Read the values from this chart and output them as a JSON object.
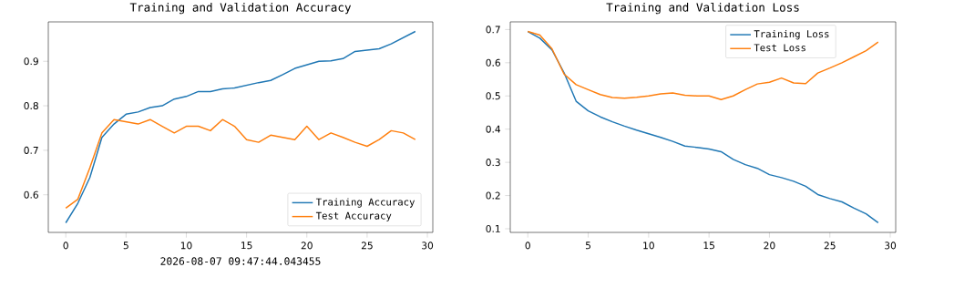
{
  "chart_data": [
    {
      "type": "line",
      "title": "Training and Validation Accuracy",
      "x": [
        0,
        1,
        2,
        3,
        4,
        5,
        6,
        7,
        8,
        9,
        10,
        11,
        12,
        13,
        14,
        15,
        16,
        17,
        18,
        19,
        20,
        21,
        22,
        23,
        24,
        25,
        26,
        27,
        28,
        29
      ],
      "series": [
        {
          "name": "Training Accuracy",
          "color": "#1f77b4",
          "values": [
            0.537,
            0.581,
            0.639,
            0.729,
            0.759,
            0.781,
            0.786,
            0.796,
            0.8,
            0.815,
            0.821,
            0.832,
            0.832,
            0.838,
            0.84,
            0.846,
            0.852,
            0.857,
            0.87,
            0.884,
            0.892,
            0.9,
            0.901,
            0.906,
            0.922,
            0.925,
            0.928,
            0.939,
            0.953,
            0.967
          ]
        },
        {
          "name": "Test Accuracy",
          "color": "#ff7f0e",
          "values": [
            0.57,
            0.59,
            0.661,
            0.739,
            0.769,
            0.764,
            0.759,
            0.769,
            0.754,
            0.739,
            0.754,
            0.754,
            0.744,
            0.769,
            0.754,
            0.724,
            0.718,
            0.734,
            0.729,
            0.724,
            0.754,
            0.724,
            0.739,
            0.729,
            0.718,
            0.709,
            0.724,
            0.744,
            0.739,
            0.724
          ]
        }
      ],
      "xlim": [
        -1.45,
        30.45
      ],
      "ylim": [
        0.5155,
        0.9885
      ],
      "xticks": [
        0,
        5,
        10,
        15,
        20,
        25,
        30
      ],
      "yticks": [
        0.6,
        0.7,
        0.8,
        0.9
      ],
      "legend": "bottom right",
      "annotations": [
        "2026-08-07 09:47:44.043455"
      ]
    },
    {
      "type": "line",
      "title": "Training and Validation Loss",
      "x": [
        0,
        1,
        2,
        3,
        4,
        5,
        6,
        7,
        8,
        9,
        10,
        11,
        12,
        13,
        14,
        15,
        16,
        17,
        18,
        19,
        20,
        21,
        22,
        23,
        24,
        25,
        26,
        27,
        28,
        29
      ],
      "series": [
        {
          "name": "Training Loss",
          "color": "#1f77b4",
          "values": [
            0.694,
            0.674,
            0.639,
            0.57,
            0.484,
            0.455,
            0.437,
            0.422,
            0.409,
            0.397,
            0.386,
            0.375,
            0.363,
            0.349,
            0.345,
            0.34,
            0.332,
            0.309,
            0.293,
            0.282,
            0.263,
            0.254,
            0.243,
            0.228,
            0.203,
            0.191,
            0.181,
            0.162,
            0.145,
            0.118
          ]
        },
        {
          "name": "Test Loss",
          "color": "#ff7f0e",
          "values": [
            0.694,
            0.683,
            0.642,
            0.566,
            0.534,
            0.519,
            0.504,
            0.495,
            0.493,
            0.496,
            0.5,
            0.506,
            0.509,
            0.502,
            0.5,
            0.5,
            0.489,
            0.5,
            0.519,
            0.536,
            0.541,
            0.554,
            0.539,
            0.537,
            0.569,
            0.584,
            0.6,
            0.618,
            0.636,
            0.662
          ]
        }
      ],
      "xlim": [
        -1.45,
        30.45
      ],
      "ylim": [
        0.089,
        0.723
      ],
      "xticks": [
        0,
        5,
        10,
        15,
        20,
        25,
        30
      ],
      "yticks": [
        0.1,
        0.2,
        0.3,
        0.4,
        0.5,
        0.6,
        0.7
      ],
      "legend": "top right"
    }
  ]
}
